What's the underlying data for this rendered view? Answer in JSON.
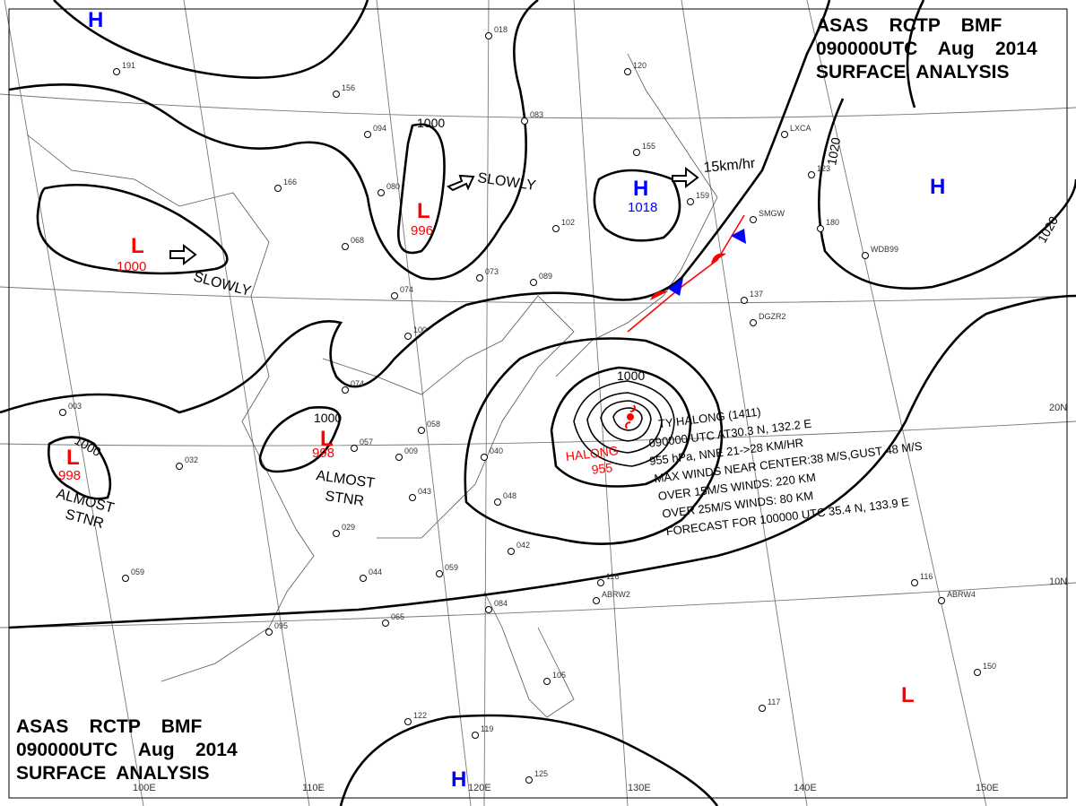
{
  "title_top": {
    "line1": "ASAS    RCTP    BMF",
    "line2": "090000UTC    Aug    2014",
    "line3": "SURFACE  ANALYSIS"
  },
  "title_bottom": {
    "line1": "ASAS    RCTP    BMF",
    "line2": "090000UTC    Aug    2014",
    "line3": "SURFACE  ANALYSIS"
  },
  "colors": {
    "high": "#0000ff",
    "low": "#ff0000",
    "isobar": "#000000",
    "grid": "#777777"
  },
  "grid_labels": {
    "lon": [
      "100E",
      "110E",
      "120E",
      "130E",
      "140E",
      "150E"
    ],
    "lat": [
      "20N",
      "10N"
    ]
  },
  "centers": [
    {
      "type": "H",
      "value": ""
    },
    {
      "type": "L",
      "value": "1000"
    },
    {
      "type": "L",
      "value": "996"
    },
    {
      "type": "H",
      "value": "1018"
    },
    {
      "type": "H",
      "value": ""
    },
    {
      "type": "L",
      "value": "998"
    },
    {
      "type": "L",
      "value": "998"
    },
    {
      "type": "H",
      "value": ""
    },
    {
      "type": "L",
      "value": ""
    }
  ],
  "isobar_labels": [
    "1000",
    "1000",
    "1000",
    "1000",
    "1020",
    "1020"
  ],
  "motions": {
    "slowly_1": "SLOWLY",
    "slowly_2": "SLOWLY",
    "speed": "15km/hr",
    "almost_stnr": [
      "ALMOST",
      "STNR"
    ]
  },
  "typhoon": {
    "name": "HALONG",
    "pressure": "955",
    "lines": [
      "TY HALONG (1411)",
      "090000 UTC  AT30.3 N, 132.2 E",
      "955 hPa, NNE 21->28 KM/HR",
      "MAX WINDS NEAR CENTER:38 M/S,GUST 48 M/S",
      "OVER 15M/S WINDS: 220 KM",
      "OVER 25M/S WINDS: 80 KM",
      "FORECAST FOR 100000 UTC 35.4 N, 133.9 E"
    ]
  },
  "stations": [
    "191",
    "156",
    "094",
    "166",
    "068",
    "080",
    "018",
    "083",
    "120",
    "155",
    "102",
    "073",
    "089",
    "074",
    "100",
    "058",
    "057",
    "043",
    "040",
    "048",
    "029",
    "044",
    "059",
    "042",
    "065",
    "095",
    "084",
    "105",
    "116",
    "122",
    "119",
    "125",
    "117",
    "150",
    "116",
    "123",
    "180",
    "137",
    "159",
    "032",
    "059",
    "003",
    "074",
    "009",
    "ABRW2",
    "ABRW4",
    "DGZR2",
    "LXCA",
    "WDB99",
    "SMGW"
  ]
}
